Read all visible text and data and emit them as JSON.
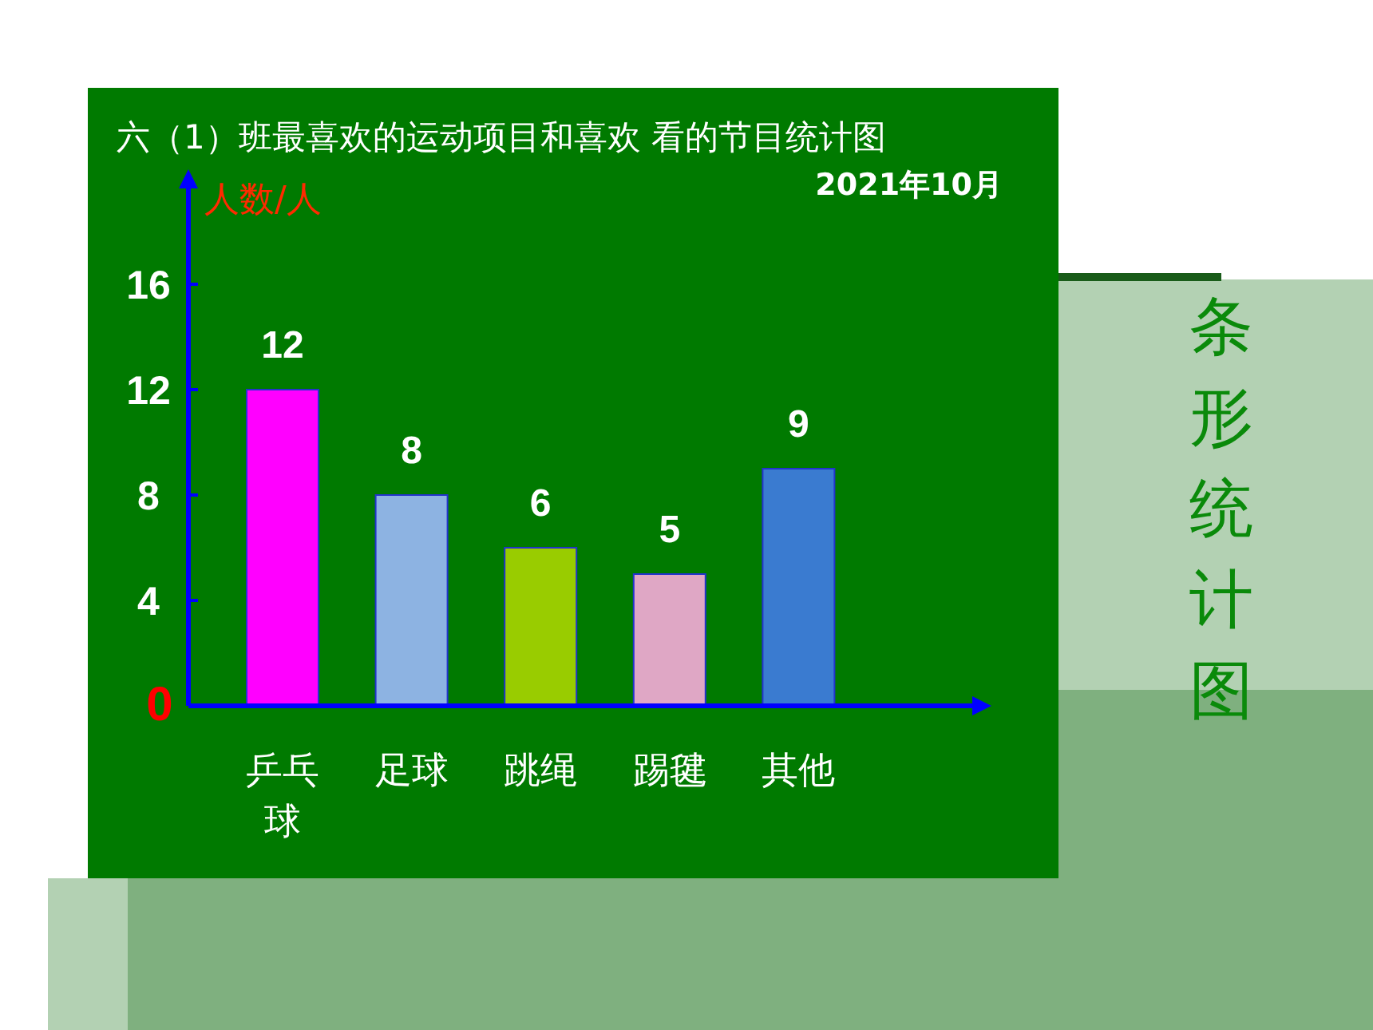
{
  "chart_data": {
    "type": "bar",
    "title": "六（1）班最喜欢的运动项目和喜欢 看的节目统计图",
    "subtitle": "2021年10月",
    "ylabel": "人数/人",
    "categories": [
      "乒乓球",
      "足球",
      "跳绳",
      "踢毽",
      "其他"
    ],
    "values": [
      12,
      8,
      6,
      5,
      9
    ],
    "colors": [
      "#ff00ff",
      "#8db3e2",
      "#99cc00",
      "#dfa7c5",
      "#3a7bd0"
    ],
    "ylim": [
      0,
      20
    ],
    "yticks": [
      0,
      4,
      8,
      12,
      16
    ],
    "data_labels": true,
    "annotations": [
      "条形统计图"
    ]
  }
}
